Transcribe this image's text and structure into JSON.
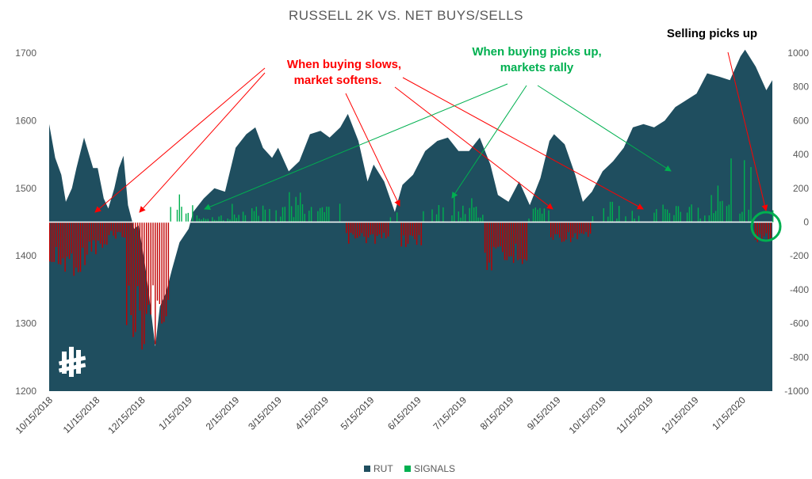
{
  "chart_data": {
    "type": "area",
    "title": "RUSSELL 2K VS. NET BUYS/SELLS",
    "x_ticks": [
      "10/15/2018",
      "11/15/2018",
      "12/15/2018",
      "1/15/2019",
      "2/15/2019",
      "3/15/2019",
      "4/15/2019",
      "5/15/2019",
      "6/15/2019",
      "7/15/2019",
      "8/15/2019",
      "9/15/2019",
      "10/15/2019",
      "11/15/2019",
      "12/15/2019",
      "1/15/2020"
    ],
    "y_left": {
      "ticks": [
        "1200",
        "1300",
        "1400",
        "1500",
        "1600",
        "1700"
      ],
      "range": [
        1200,
        1700
      ]
    },
    "y_right": {
      "ticks": [
        "-1000",
        "-800",
        "-600",
        "-400",
        "-200",
        "0",
        "200",
        "400",
        "600",
        "800",
        "1000"
      ],
      "range": [
        -1000,
        1000
      ]
    },
    "series": [
      {
        "name": "RUT",
        "kind": "area",
        "color": "#1f4e5f",
        "points": [
          [
            "10/15/2018",
            1595
          ],
          [
            "10/19/2018",
            1545
          ],
          [
            "10/23/2018",
            1520
          ],
          [
            "10/26/2018",
            1480
          ],
          [
            "10/30/2018",
            1500
          ],
          [
            "11/2/2018",
            1530
          ],
          [
            "11/7/2018",
            1575
          ],
          [
            "11/9/2018",
            1560
          ],
          [
            "11/13/2018",
            1530
          ],
          [
            "11/16/2018",
            1530
          ],
          [
            "11/20/2018",
            1485
          ],
          [
            "11/23/2018",
            1470
          ],
          [
            "11/27/2018",
            1500
          ],
          [
            "11/30/2018",
            1530
          ],
          [
            "12/3/2018",
            1548
          ],
          [
            "12/6/2018",
            1475
          ],
          [
            "12/10/2018",
            1440
          ],
          [
            "12/13/2018",
            1445
          ],
          [
            "12/17/2018",
            1390
          ],
          [
            "12/20/2018",
            1340
          ],
          [
            "12/24/2018",
            1266
          ],
          [
            "12/27/2018",
            1325
          ],
          [
            "12/31/2018",
            1345
          ],
          [
            "1/4/2019",
            1380
          ],
          [
            "1/9/2019",
            1420
          ],
          [
            "1/15/2019",
            1440
          ],
          [
            "1/18/2019",
            1465
          ],
          [
            "1/25/2019",
            1485
          ],
          [
            "2/1/2019",
            1500
          ],
          [
            "2/8/2019",
            1495
          ],
          [
            "2/15/2019",
            1560
          ],
          [
            "2/22/2019",
            1580
          ],
          [
            "2/28/2019",
            1590
          ],
          [
            "3/5/2019",
            1560
          ],
          [
            "3/11/2019",
            1545
          ],
          [
            "3/15/2019",
            1560
          ],
          [
            "3/22/2019",
            1525
          ],
          [
            "3/29/2019",
            1540
          ],
          [
            "4/5/2019",
            1580
          ],
          [
            "4/12/2019",
            1585
          ],
          [
            "4/18/2019",
            1575
          ],
          [
            "4/25/2019",
            1590
          ],
          [
            "4/30/2019",
            1610
          ],
          [
            "5/7/2019",
            1570
          ],
          [
            "5/13/2019",
            1510
          ],
          [
            "5/17/2019",
            1535
          ],
          [
            "5/24/2019",
            1510
          ],
          [
            "5/31/2019",
            1465
          ],
          [
            "6/5/2019",
            1505
          ],
          [
            "6/12/2019",
            1520
          ],
          [
            "6/20/2019",
            1555
          ],
          [
            "6/28/2019",
            1570
          ],
          [
            "7/5/2019",
            1575
          ],
          [
            "7/12/2019",
            1555
          ],
          [
            "7/19/2019",
            1555
          ],
          [
            "7/26/2019",
            1575
          ],
          [
            "8/2/2019",
            1535
          ],
          [
            "8/7/2019",
            1490
          ],
          [
            "8/14/2019",
            1480
          ],
          [
            "8/21/2019",
            1510
          ],
          [
            "8/28/2019",
            1475
          ],
          [
            "9/4/2019",
            1515
          ],
          [
            "9/10/2019",
            1570
          ],
          [
            "9/13/2019",
            1580
          ],
          [
            "9/20/2019",
            1565
          ],
          [
            "9/27/2019",
            1520
          ],
          [
            "10/2/2019",
            1480
          ],
          [
            "10/8/2019",
            1495
          ],
          [
            "10/15/2019",
            1525
          ],
          [
            "10/22/2019",
            1540
          ],
          [
            "10/29/2019",
            1560
          ],
          [
            "11/4/2019",
            1590
          ],
          [
            "11/11/2019",
            1595
          ],
          [
            "11/18/2019",
            1590
          ],
          [
            "11/25/2019",
            1600
          ],
          [
            "12/2/2019",
            1620
          ],
          [
            "12/9/2019",
            1630
          ],
          [
            "12/16/2019",
            1640
          ],
          [
            "12/23/2019",
            1670
          ],
          [
            "12/31/2019",
            1665
          ],
          [
            "1/7/2020",
            1660
          ],
          [
            "1/14/2020",
            1695
          ],
          [
            "1/17/2020",
            1705
          ],
          [
            "1/24/2020",
            1680
          ],
          [
            "1/31/2020",
            1645
          ],
          [
            "2/4/2020",
            1660
          ]
        ]
      },
      {
        "name": "SIGNALS",
        "kind": "bar",
        "color": "#00b050",
        "negative_color": "#c00000",
        "range": [
          -800,
          320
        ]
      }
    ],
    "legend": [
      "RUT",
      "SIGNALS"
    ],
    "legend_position": "bottom",
    "grid": false
  },
  "annotations": {
    "selling": "Selling picks up",
    "buying_slows_line1": "When buying slows,",
    "buying_slows_line2": "market softens.",
    "buying_up_line1": "When buying picks up,",
    "buying_up_line2": "markets rally"
  },
  "colors": {
    "rut": "#1f4e5f",
    "positive": "#00b050",
    "negative": "#c00000",
    "highlight_circle": "#00b050"
  },
  "logo": {
    "icon": "brand-logo-icon"
  }
}
